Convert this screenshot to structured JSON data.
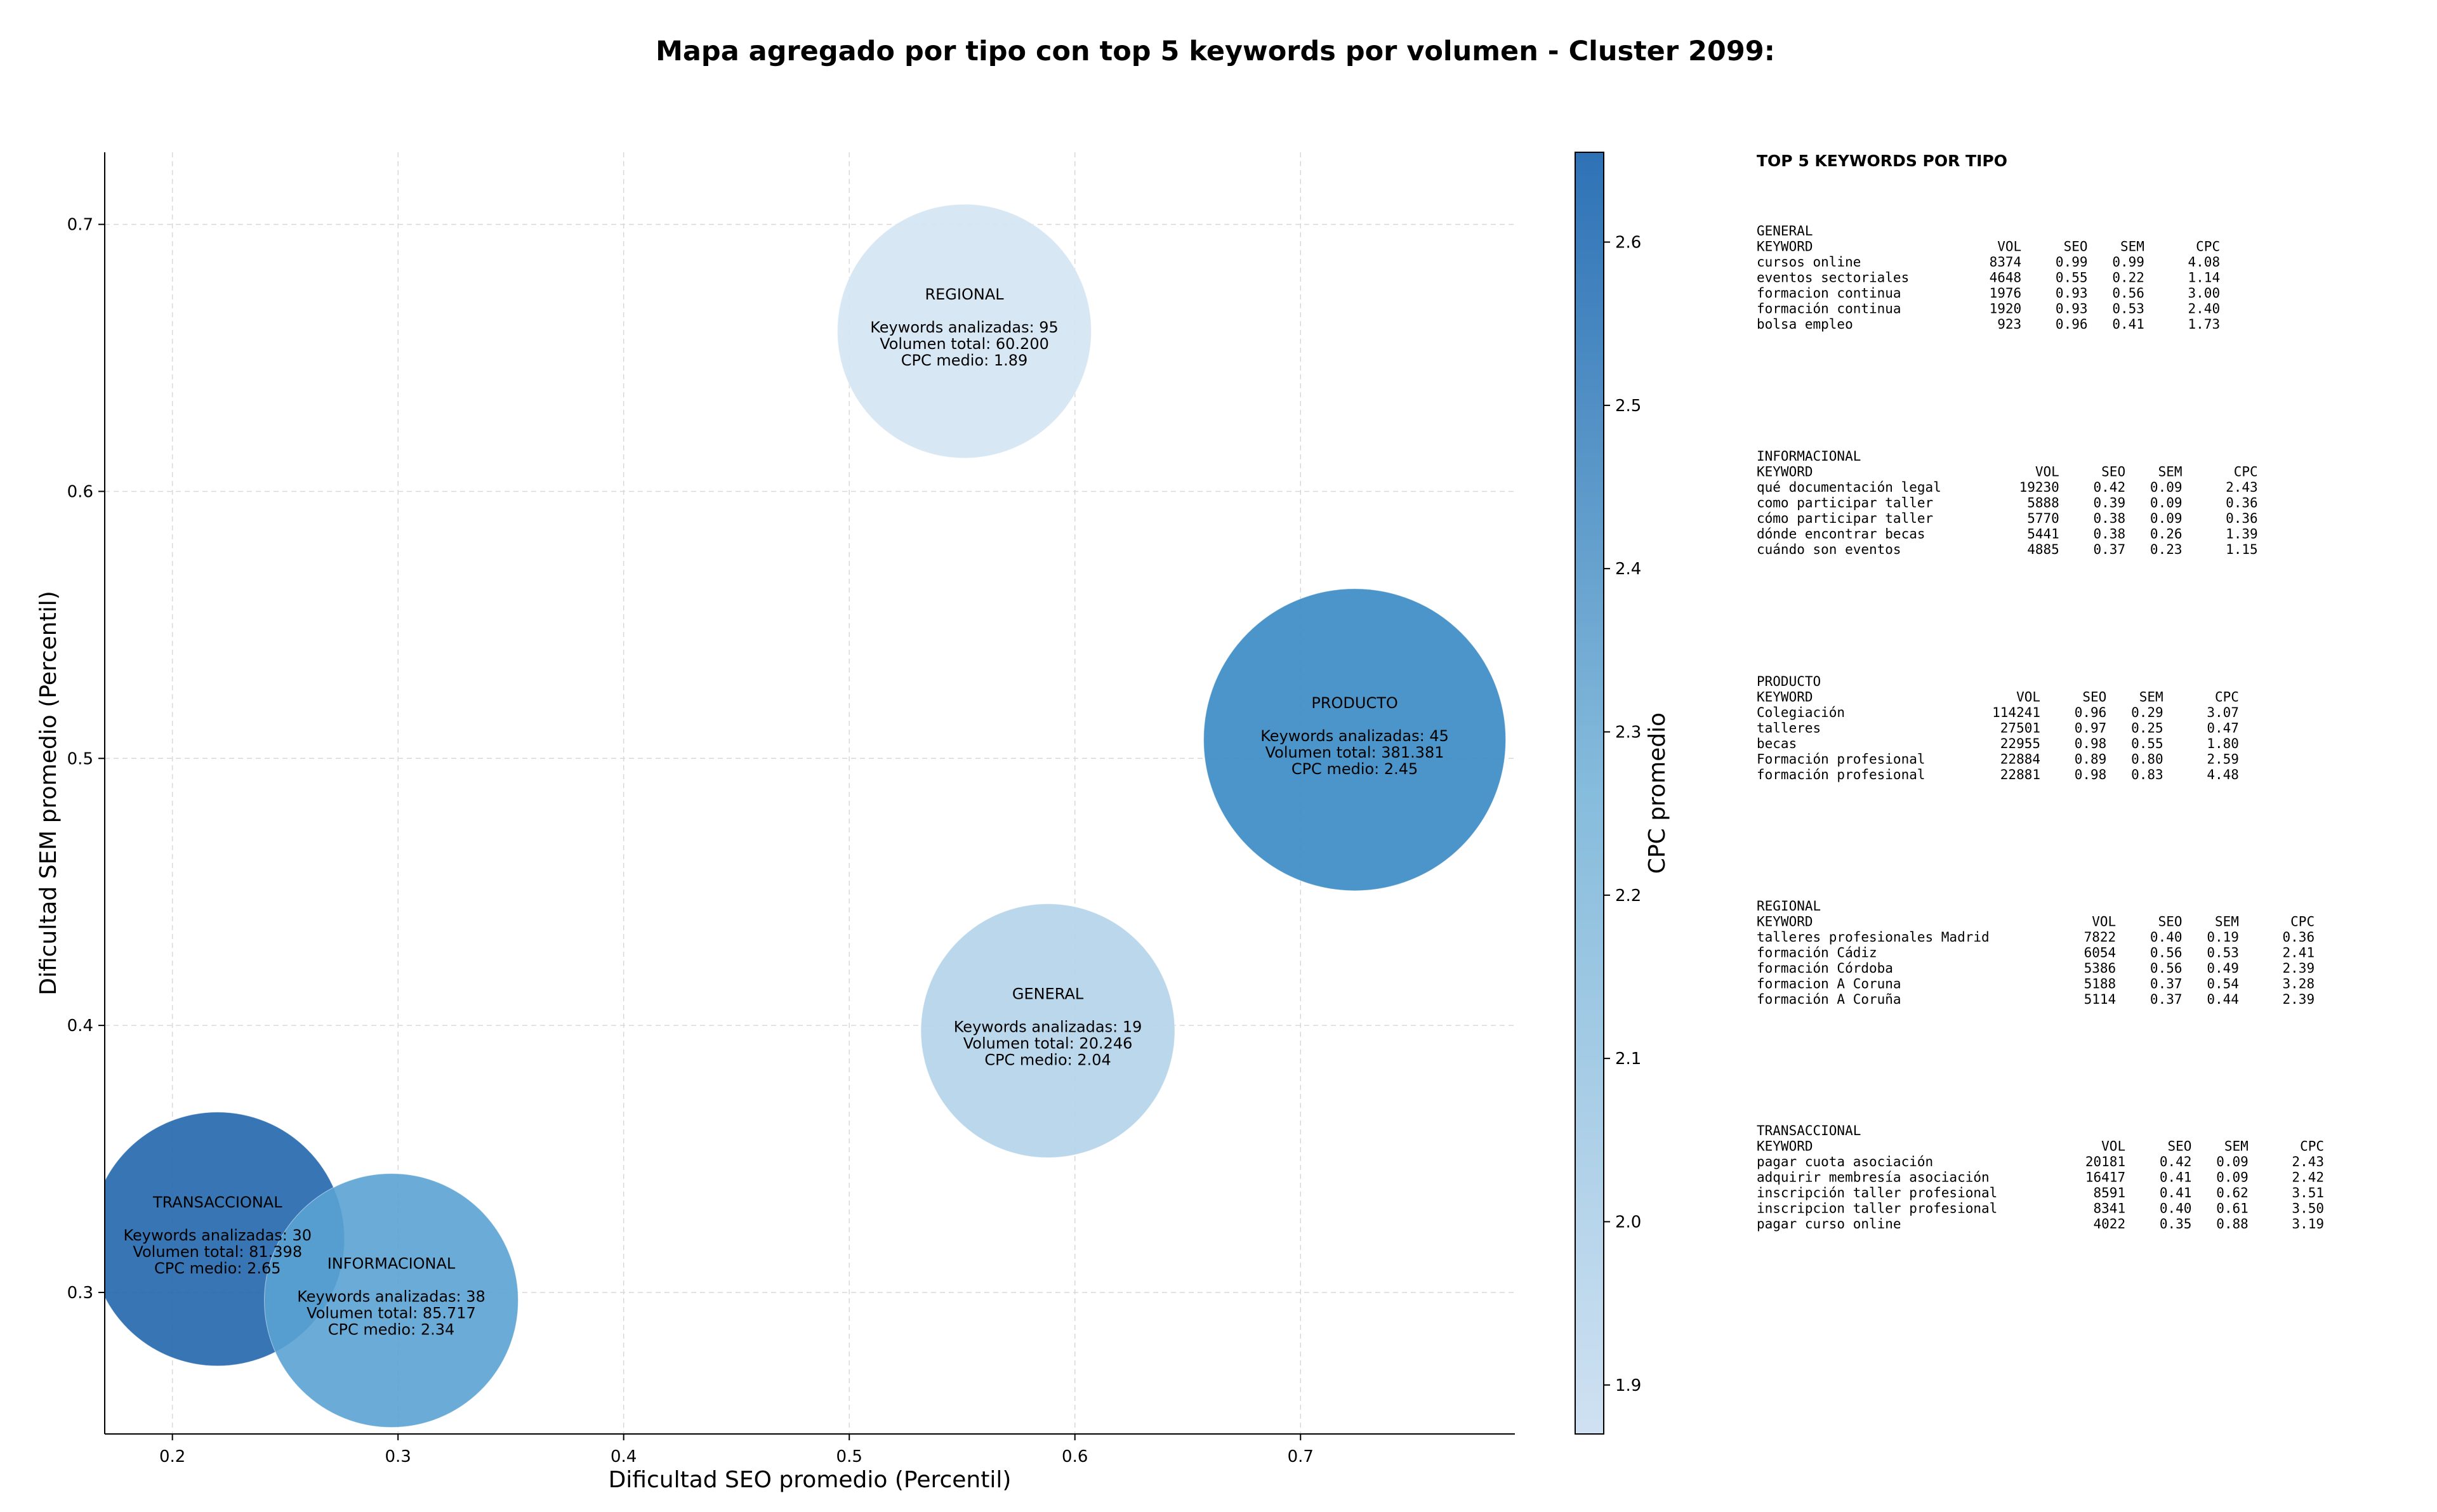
{
  "chart_data": {
    "type": "scatter",
    "title": "Mapa agregado por tipo con top 5 keywords por volumen - Cluster 2099:",
    "xlabel": "Dificultad SEO promedio (Percentil)",
    "ylabel": "Dificultad SEM promedio (Percentil)",
    "xlim": [
      0.17,
      0.795
    ],
    "ylim": [
      0.247,
      0.727
    ],
    "xticks": [
      "0.2",
      "0.3",
      "0.4",
      "0.5",
      "0.6",
      "0.7"
    ],
    "yticks": [
      "0.3",
      "0.4",
      "0.5",
      "0.6",
      "0.7"
    ],
    "grid": true,
    "colorbar": {
      "label": "CPC promedio",
      "range": [
        1.87,
        2.655
      ],
      "ticks": [
        "1.9",
        "2.0",
        "2.1",
        "2.2",
        "2.3",
        "2.4",
        "2.5",
        "2.6"
      ],
      "color_low": "#cfe1f2",
      "color_high": "#2e72b6"
    },
    "bubbles": [
      {
        "name": "REGIONAL",
        "x": 0.551,
        "y": 0.66,
        "volume": 60200,
        "color": "#d3e4f3",
        "opacity": 0.9,
        "lines": [
          "Keywords analizadas: 95",
          "Volumen total: 60.200",
          "CPC medio: 1.89"
        ]
      },
      {
        "name": "PRODUCTO",
        "x": 0.724,
        "y": 0.507,
        "volume": 381381,
        "color": "#3d8cc5",
        "opacity": 0.92,
        "lines": [
          "Keywords analizadas: 45",
          "Volumen total: 381.381",
          "CPC medio: 2.45"
        ]
      },
      {
        "name": "GENERAL",
        "x": 0.588,
        "y": 0.398,
        "volume": 20246,
        "color": "#b5d4e9",
        "opacity": 0.92,
        "lines": [
          "Keywords analizadas: 19",
          "Volumen total: 20.246",
          "CPC medio: 2.04"
        ]
      },
      {
        "name": "TRANSACCIONAL",
        "x": 0.22,
        "y": 0.32,
        "volume": 81398,
        "color": "#2166ac",
        "opacity": 0.9,
        "lines": [
          "Keywords analizadas: 30",
          "Volumen total: 81.398",
          "CPC medio: 2.65"
        ]
      },
      {
        "name": "INFORMACIONAL",
        "x": 0.297,
        "y": 0.297,
        "volume": 85717,
        "color": "#5aa3d3",
        "opacity": 0.9,
        "lines": [
          "Keywords analizadas: 38",
          "Volumen total: 85.717",
          "CPC medio: 2.34"
        ]
      }
    ]
  },
  "panel": {
    "title": "TOP 5 KEYWORDS POR TIPO",
    "header": [
      "KEYWORD",
      "VOL",
      "SEO",
      "SEM",
      "CPC"
    ],
    "groups": [
      {
        "name": "GENERAL",
        "rows": [
          [
            "cursos online",
            "8374",
            "0.99",
            "0.99",
            "4.08"
          ],
          [
            "eventos sectoriales",
            "4648",
            "0.55",
            "0.22",
            "1.14"
          ],
          [
            "formacion continua",
            "1976",
            "0.93",
            "0.56",
            "3.00"
          ],
          [
            "formación continua",
            "1920",
            "0.93",
            "0.53",
            "2.40"
          ],
          [
            "bolsa empleo",
            "923",
            "0.96",
            "0.41",
            "1.73"
          ]
        ]
      },
      {
        "name": "INFORMACIONAL",
        "rows": [
          [
            "qué documentación legal",
            "19230",
            "0.42",
            "0.09",
            "2.43"
          ],
          [
            "como participar taller",
            "5888",
            "0.39",
            "0.09",
            "0.36"
          ],
          [
            "cómo participar taller",
            "5770",
            "0.38",
            "0.09",
            "0.36"
          ],
          [
            "dónde encontrar becas",
            "5441",
            "0.38",
            "0.26",
            "1.39"
          ],
          [
            "cuándo son eventos",
            "4885",
            "0.37",
            "0.23",
            "1.15"
          ]
        ]
      },
      {
        "name": "PRODUCTO",
        "rows": [
          [
            "Colegiación",
            "114241",
            "0.96",
            "0.29",
            "3.07"
          ],
          [
            "talleres",
            "27501",
            "0.97",
            "0.25",
            "0.47"
          ],
          [
            "becas",
            "22955",
            "0.98",
            "0.55",
            "1.80"
          ],
          [
            "Formación profesional",
            "22884",
            "0.89",
            "0.80",
            "2.59"
          ],
          [
            "formación profesional",
            "22881",
            "0.98",
            "0.83",
            "4.48"
          ]
        ]
      },
      {
        "name": "REGIONAL",
        "rows": [
          [
            "talleres profesionales Madrid",
            "7822",
            "0.40",
            "0.19",
            "0.36"
          ],
          [
            "formación Cádiz",
            "6054",
            "0.56",
            "0.53",
            "2.41"
          ],
          [
            "formación Córdoba",
            "5386",
            "0.56",
            "0.49",
            "2.39"
          ],
          [
            "formacion A Coruna",
            "5188",
            "0.37",
            "0.54",
            "3.28"
          ],
          [
            "formación A Coruña",
            "5114",
            "0.37",
            "0.44",
            "2.39"
          ]
        ]
      },
      {
        "name": "TRANSACCIONAL",
        "rows": [
          [
            "pagar cuota asociación",
            "20181",
            "0.42",
            "0.09",
            "2.43"
          ],
          [
            "adquirir membresía asociación",
            "16417",
            "0.41",
            "0.09",
            "2.42"
          ],
          [
            "inscripción taller profesional",
            "8591",
            "0.41",
            "0.62",
            "3.51"
          ],
          [
            "inscripcion taller profesional",
            "8341",
            "0.40",
            "0.61",
            "3.50"
          ],
          [
            "pagar curso online",
            "4022",
            "0.35",
            "0.88",
            "3.19"
          ]
        ]
      }
    ]
  }
}
